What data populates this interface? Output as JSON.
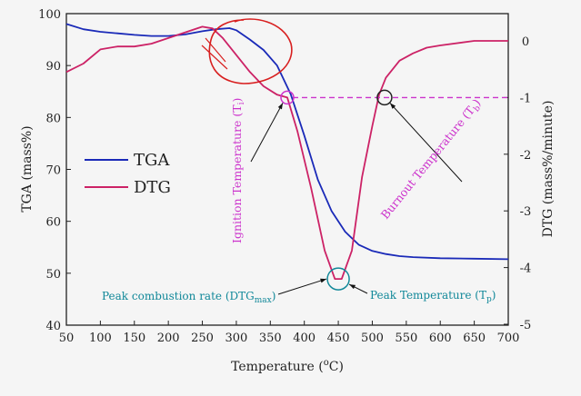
{
  "chart_data": {
    "type": "line",
    "xlabel": "Temperature (°C)",
    "ylabel_left": "TGA (mass%)",
    "ylabel_right": "DTG (mass%/minute)",
    "xlim": [
      50,
      700
    ],
    "ylim_left": [
      40,
      100
    ],
    "ylim_right": [
      -5,
      0.5
    ],
    "xticks": [
      "50",
      "100",
      "150",
      "200",
      "250",
      "300",
      "350",
      "400",
      "450",
      "500",
      "550",
      "600",
      "650",
      "700"
    ],
    "yticks_left": [
      "40",
      "50",
      "60",
      "70",
      "80",
      "90",
      "100"
    ],
    "yticks_right": [
      "-5",
      "-4",
      "-3",
      "-2",
      "-1",
      "0"
    ],
    "grid": false,
    "legend_position": "left-middle",
    "series": [
      {
        "name": "TGA",
        "axis": "left",
        "color": "#1a2ab8",
        "x": [
          50,
          75,
          100,
          125,
          150,
          175,
          200,
          225,
          250,
          270,
          290,
          300,
          320,
          340,
          360,
          380,
          400,
          420,
          440,
          460,
          480,
          500,
          520,
          540,
          560,
          600,
          650,
          700
        ],
        "y": [
          98.0,
          97.0,
          96.5,
          96.2,
          95.9,
          95.7,
          95.7,
          96.0,
          96.6,
          97.0,
          97.2,
          96.8,
          95.0,
          93.0,
          90.0,
          84.5,
          76.5,
          68.0,
          62.0,
          58.0,
          55.5,
          54.3,
          53.7,
          53.3,
          53.1,
          52.9,
          52.8,
          52.7
        ]
      },
      {
        "name": "DTG",
        "axis": "right",
        "color": "#cc2266",
        "x": [
          50,
          75,
          100,
          125,
          150,
          175,
          200,
          225,
          250,
          265,
          280,
          300,
          320,
          340,
          360,
          375,
          390,
          410,
          430,
          445,
          455,
          470,
          485,
          500,
          510,
          520,
          540,
          560,
          580,
          600,
          650,
          700
        ],
        "y": [
          -0.55,
          -0.4,
          -0.15,
          -0.1,
          -0.1,
          -0.05,
          0.05,
          0.15,
          0.25,
          0.22,
          0.05,
          -0.25,
          -0.55,
          -0.8,
          -0.95,
          -1.0,
          -1.6,
          -2.6,
          -3.7,
          -4.2,
          -4.2,
          -3.7,
          -2.4,
          -1.5,
          -0.95,
          -0.65,
          -0.35,
          -0.22,
          -0.12,
          -0.08,
          0.0,
          0.0
        ]
      }
    ],
    "annotations": [
      {
        "id": "ignition",
        "text": "Ignition Temperature (T",
        "sub": "i",
        "close": ")",
        "x": 375,
        "y_right": -1.0
      },
      {
        "id": "burnout",
        "text": "Burnout Temperature (T",
        "sub": "b",
        "close": ")",
        "x": 518,
        "y_right": -1.0
      },
      {
        "id": "peak_rate",
        "text": "Peak combustion rate (DTG",
        "sub": "max",
        "close": ")",
        "x": 450,
        "y_right": -4.2
      },
      {
        "id": "peak_temp",
        "text": "Peak Temperature (T",
        "sub": "p",
        "close": ")",
        "x": 450,
        "y_right": -4.2
      }
    ],
    "colors": {
      "tga": "#1a2ab8",
      "dtg": "#cc2266",
      "annotation": "#cc33cc",
      "peak": "#118899",
      "highlight": "#d82020",
      "burnout_circle": "#222222"
    }
  }
}
